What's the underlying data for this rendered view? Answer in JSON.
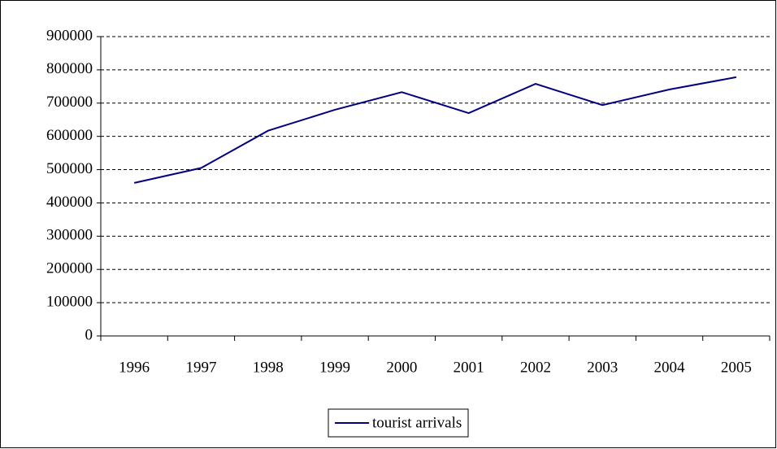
{
  "chart_data": {
    "type": "line",
    "categories": [
      "1996",
      "1997",
      "1998",
      "1999",
      "2000",
      "2001",
      "2002",
      "2003",
      "2004",
      "2005"
    ],
    "series": [
      {
        "name": "tourist arrivals",
        "color": "#000080",
        "values": [
          460000,
          505000,
          617000,
          680000,
          733000,
          670000,
          758000,
          694000,
          741000,
          778000
        ]
      }
    ],
    "ylim": [
      0,
      900000
    ],
    "yticks": [
      0,
      100000,
      200000,
      300000,
      400000,
      500000,
      600000,
      700000,
      800000,
      900000
    ],
    "grid": true,
    "legend": "bottom"
  }
}
